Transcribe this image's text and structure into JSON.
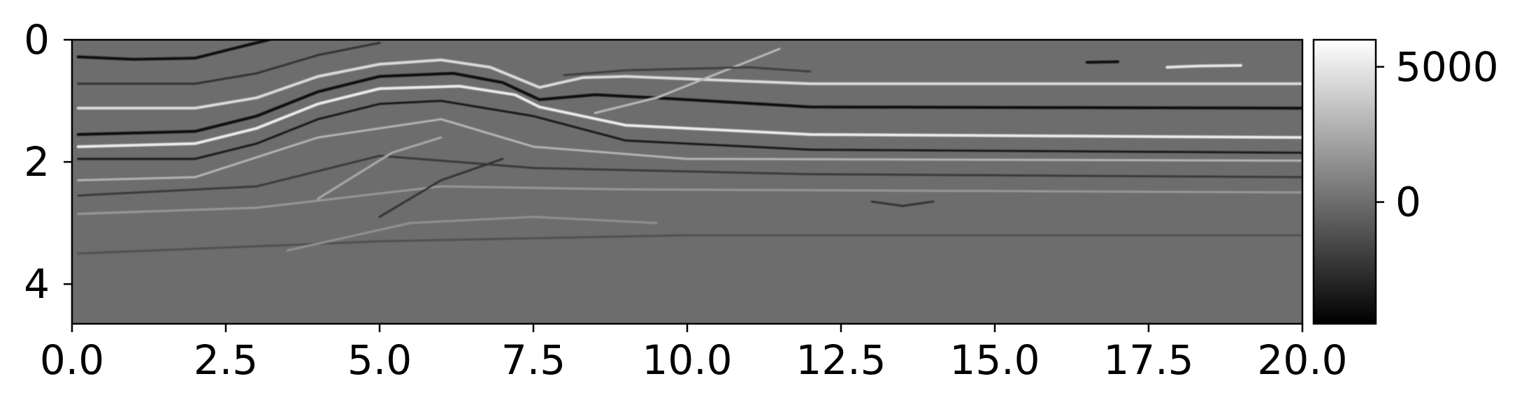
{
  "chart_data": {
    "type": "heatmap",
    "title": "",
    "xlabel": "",
    "ylabel": "",
    "xlim": [
      0.0,
      20.0
    ],
    "ylim": [
      4.65,
      0.0
    ],
    "x_ticks": [
      "0.0",
      "2.5",
      "5.0",
      "7.5",
      "10.0",
      "12.5",
      "15.0",
      "17.5",
      "20.0"
    ],
    "x_tick_values": [
      0.0,
      2.5,
      5.0,
      7.5,
      10.0,
      12.5,
      15.0,
      17.5,
      20.0
    ],
    "y_ticks": [
      "0",
      "2",
      "4"
    ],
    "y_tick_values": [
      0,
      2,
      4
    ],
    "colormap": "gray",
    "colorbar": {
      "range": [
        -4500,
        6000
      ],
      "ticks": [
        "5000",
        "0"
      ],
      "tick_values": [
        5000,
        0
      ]
    },
    "background_value": 0,
    "reflectors": [
      {
        "points": [
          [
            0.1,
            0.28
          ],
          [
            1.0,
            0.32
          ],
          [
            2.0,
            0.3
          ],
          [
            2.6,
            0.15
          ],
          [
            3.2,
            0.0
          ]
        ],
        "amplitude": -3800
      },
      {
        "points": [
          [
            0.1,
            0.72
          ],
          [
            2.0,
            0.72
          ],
          [
            3.0,
            0.55
          ],
          [
            4.0,
            0.25
          ],
          [
            5.0,
            0.05
          ]
        ],
        "amplitude": -2500
      },
      {
        "points": [
          [
            0.1,
            1.12
          ],
          [
            2.0,
            1.12
          ],
          [
            3.0,
            0.95
          ],
          [
            4.0,
            0.6
          ],
          [
            5.0,
            0.4
          ],
          [
            6.0,
            0.33
          ],
          [
            6.8,
            0.45
          ],
          [
            7.6,
            0.78
          ],
          [
            8.3,
            0.62
          ],
          [
            9.0,
            0.6
          ],
          [
            12.0,
            0.72
          ],
          [
            20.0,
            0.72
          ]
        ],
        "amplitude": 4500
      },
      {
        "points": [
          [
            0.1,
            1.55
          ],
          [
            2.0,
            1.5
          ],
          [
            3.0,
            1.25
          ],
          [
            4.0,
            0.85
          ],
          [
            5.0,
            0.6
          ],
          [
            6.2,
            0.55
          ],
          [
            7.0,
            0.7
          ],
          [
            7.6,
            0.98
          ],
          [
            8.5,
            0.9
          ],
          [
            9.5,
            0.95
          ],
          [
            12.0,
            1.1
          ],
          [
            20.0,
            1.12
          ]
        ],
        "amplitude": -4200
      },
      {
        "points": [
          [
            0.1,
            1.75
          ],
          [
            2.0,
            1.7
          ],
          [
            3.0,
            1.45
          ],
          [
            4.0,
            1.05
          ],
          [
            5.0,
            0.8
          ],
          [
            6.3,
            0.76
          ],
          [
            7.2,
            0.9
          ],
          [
            7.6,
            1.1
          ],
          [
            9.0,
            1.4
          ],
          [
            12.0,
            1.55
          ],
          [
            20.0,
            1.6
          ]
        ],
        "amplitude": 5200
      },
      {
        "points": [
          [
            0.1,
            1.95
          ],
          [
            2.0,
            1.95
          ],
          [
            3.0,
            1.7
          ],
          [
            4.0,
            1.3
          ],
          [
            5.0,
            1.05
          ],
          [
            6.0,
            1.0
          ],
          [
            7.5,
            1.25
          ],
          [
            9.0,
            1.65
          ],
          [
            12.0,
            1.8
          ],
          [
            20.0,
            1.85
          ]
        ],
        "amplitude": -3500
      },
      {
        "points": [
          [
            0.1,
            2.3
          ],
          [
            2.0,
            2.25
          ],
          [
            4.0,
            1.6
          ],
          [
            6.0,
            1.3
          ],
          [
            7.5,
            1.75
          ],
          [
            10.0,
            1.95
          ],
          [
            20.0,
            1.98
          ]
        ],
        "amplitude": 3000
      },
      {
        "points": [
          [
            0.1,
            2.55
          ],
          [
            3.0,
            2.4
          ],
          [
            5.0,
            1.9
          ],
          [
            7.5,
            2.1
          ],
          [
            12.0,
            2.2
          ],
          [
            20.0,
            2.25
          ]
        ],
        "amplitude": -2200
      },
      {
        "points": [
          [
            0.1,
            2.85
          ],
          [
            3.0,
            2.75
          ],
          [
            6.0,
            2.4
          ],
          [
            9.0,
            2.45
          ],
          [
            20.0,
            2.5
          ]
        ],
        "amplitude": 1800
      },
      {
        "points": [
          [
            0.1,
            3.5
          ],
          [
            5.0,
            3.3
          ],
          [
            10.0,
            3.2
          ],
          [
            20.0,
            3.2
          ]
        ],
        "amplitude": -1200
      },
      {
        "points": [
          [
            3.5,
            3.45
          ],
          [
            5.5,
            3.0
          ],
          [
            7.5,
            2.9
          ],
          [
            9.5,
            3.0
          ]
        ],
        "amplitude": 1500
      },
      {
        "points": [
          [
            4.0,
            2.6
          ],
          [
            5.2,
            1.85
          ],
          [
            6.0,
            1.6
          ]
        ],
        "amplitude": 2600
      },
      {
        "points": [
          [
            5.0,
            2.9
          ],
          [
            6.0,
            2.3
          ],
          [
            7.0,
            1.95
          ]
        ],
        "amplitude": -2400
      },
      {
        "points": [
          [
            8.5,
            1.2
          ],
          [
            9.5,
            0.95
          ],
          [
            10.5,
            0.55
          ],
          [
            11.5,
            0.15
          ]
        ],
        "amplitude": 3200
      },
      {
        "points": [
          [
            8.0,
            0.58
          ],
          [
            9.0,
            0.5
          ],
          [
            11.0,
            0.45
          ],
          [
            12.0,
            0.52
          ]
        ],
        "amplitude": -2000
      },
      {
        "points": [
          [
            16.5,
            0.37
          ],
          [
            17.0,
            0.36
          ]
        ],
        "amplitude": -4000
      },
      {
        "points": [
          [
            17.8,
            0.45
          ],
          [
            18.3,
            0.43
          ],
          [
            19.0,
            0.42
          ]
        ],
        "amplitude": 5000
      },
      {
        "points": [
          [
            13.0,
            2.65
          ],
          [
            13.5,
            2.72
          ],
          [
            14.0,
            2.65
          ]
        ],
        "amplitude": -2500
      }
    ]
  }
}
